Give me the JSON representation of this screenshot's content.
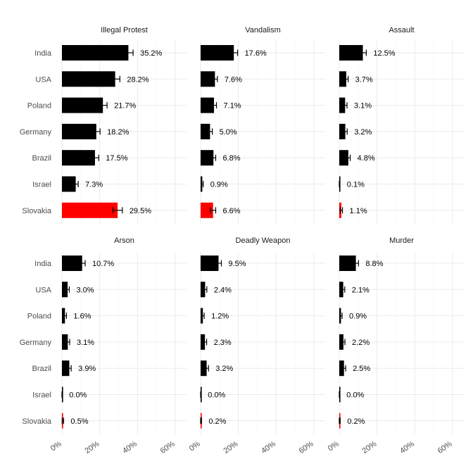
{
  "chart_data": {
    "type": "bar",
    "orientation": "horizontal",
    "categories": [
      "India",
      "USA",
      "Poland",
      "Germany",
      "Brazil",
      "Israel",
      "Slovakia"
    ],
    "highlight_category": "Slovakia",
    "colors": {
      "default": "#000000",
      "highlight": "#ff0000"
    },
    "xlim": [
      0,
      0.66
    ],
    "xticks": [
      0,
      0.2,
      0.4,
      0.6
    ],
    "xtick_labels": [
      "0%",
      "20%",
      "40%",
      "60%"
    ],
    "grid": true,
    "facets": [
      {
        "title": "Illegal Protest",
        "values": [
          0.352,
          0.282,
          0.217,
          0.182,
          0.175,
          0.073,
          0.295
        ],
        "labels": [
          "35.2%",
          "28.2%",
          "21.7%",
          "18.2%",
          "17.5%",
          "7.3%",
          "29.5%"
        ],
        "errors": [
          0.025,
          0.025,
          0.022,
          0.02,
          0.02,
          0.013,
          0.025
        ]
      },
      {
        "title": "Vandalism",
        "values": [
          0.176,
          0.076,
          0.071,
          0.05,
          0.068,
          0.009,
          0.066
        ],
        "labels": [
          "17.6%",
          "7.6%",
          "7.1%",
          "5.0%",
          "6.8%",
          "0.9%",
          "6.6%"
        ],
        "errors": [
          0.02,
          0.013,
          0.013,
          0.012,
          0.012,
          0.005,
          0.014
        ]
      },
      {
        "title": "Assault",
        "values": [
          0.125,
          0.037,
          0.031,
          0.032,
          0.048,
          0.001,
          0.011
        ],
        "labels": [
          "12.5%",
          "3.7%",
          "3.1%",
          "3.2%",
          "4.8%",
          "0.1%",
          "1.1%"
        ],
        "errors": [
          0.018,
          0.01,
          0.01,
          0.01,
          0.01,
          0.002,
          0.006
        ]
      },
      {
        "title": "Arson",
        "values": [
          0.107,
          0.03,
          0.016,
          0.031,
          0.039,
          0.0,
          0.005
        ],
        "labels": [
          "10.7%",
          "3.0%",
          "1.6%",
          "3.1%",
          "3.9%",
          "0.0%",
          "0.5%"
        ],
        "errors": [
          0.016,
          0.009,
          0.008,
          0.01,
          0.01,
          0.001,
          0.004
        ]
      },
      {
        "title": "Deadly Weapon",
        "values": [
          0.095,
          0.024,
          0.012,
          0.023,
          0.032,
          0.0,
          0.002
        ],
        "labels": [
          "9.5%",
          "2.4%",
          "1.2%",
          "2.3%",
          "3.2%",
          "0.0%",
          "0.2%"
        ],
        "errors": [
          0.015,
          0.009,
          0.007,
          0.009,
          0.01,
          0.001,
          0.003
        ]
      },
      {
        "title": "Murder",
        "values": [
          0.088,
          0.021,
          0.009,
          0.022,
          0.025,
          0.0,
          0.002
        ],
        "labels": [
          "8.8%",
          "2.1%",
          "0.9%",
          "2.2%",
          "2.5%",
          "0.0%",
          "0.2%"
        ],
        "errors": [
          0.014,
          0.008,
          0.006,
          0.008,
          0.009,
          0.001,
          0.003
        ]
      }
    ]
  }
}
